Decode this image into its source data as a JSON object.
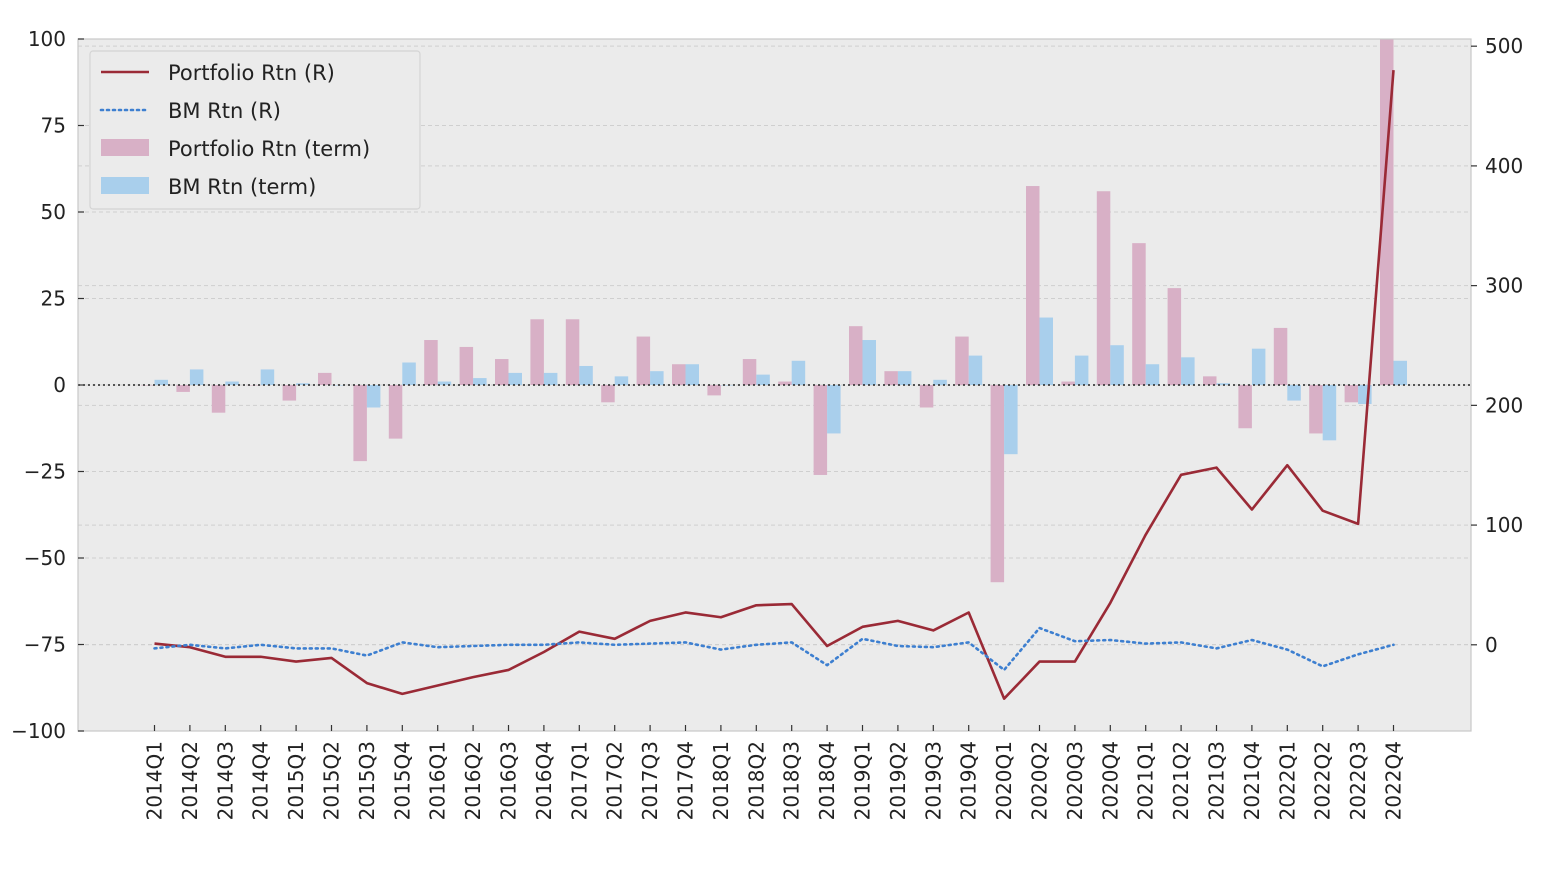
{
  "chart_data": {
    "type": "bar+line",
    "title": "",
    "xlabel": "",
    "ylabel_left": "",
    "ylabel_right": "",
    "grid": true,
    "legend_position": "upper-left",
    "categories": [
      "2014Q1",
      "2014Q2",
      "2014Q3",
      "2014Q4",
      "2015Q1",
      "2015Q2",
      "2015Q3",
      "2015Q4",
      "2016Q1",
      "2016Q2",
      "2016Q3",
      "2016Q4",
      "2017Q1",
      "2017Q2",
      "2017Q3",
      "2017Q4",
      "2018Q1",
      "2018Q2",
      "2018Q3",
      "2018Q4",
      "2019Q1",
      "2019Q2",
      "2019Q3",
      "2019Q4",
      "2020Q1",
      "2020Q2",
      "2020Q3",
      "2020Q4",
      "2021Q1",
      "2021Q2",
      "2021Q3",
      "2021Q4",
      "2022Q1",
      "2022Q2",
      "2022Q3",
      "2022Q4"
    ],
    "left_axis": {
      "ylim": [
        -100,
        100
      ],
      "ticks": [
        -100,
        -75,
        -50,
        -25,
        0,
        25,
        50,
        75,
        100
      ]
    },
    "right_axis": {
      "ylim": [
        -72,
        506
      ],
      "ticks": [
        0,
        100,
        200,
        300,
        400,
        500
      ]
    },
    "zero_line": 0,
    "series": [
      {
        "name": "Portfolio Rtn (term)",
        "kind": "bar",
        "axis": "left",
        "color": "#d8b0c6",
        "values": [
          0,
          -2,
          -8,
          0,
          -4.5,
          3.5,
          -22,
          -15.5,
          13,
          11,
          7.5,
          19,
          19,
          -5,
          14,
          6,
          -3,
          7.5,
          1,
          -26,
          17,
          4,
          -6.5,
          14,
          -57,
          57.5,
          1,
          56,
          41,
          28,
          2.5,
          -12.5,
          16.5,
          -14,
          -5,
          100
        ]
      },
      {
        "name": "BM Rtn (term)",
        "kind": "bar",
        "axis": "left",
        "color": "#a9cfec",
        "values": [
          1.5,
          4.5,
          1,
          4.5,
          0.5,
          0,
          -6.5,
          6.5,
          1,
          2,
          3.5,
          3.5,
          5.5,
          2.5,
          4,
          6,
          0,
          3,
          7,
          -14,
          13,
          4,
          1.5,
          8.5,
          -20,
          19.5,
          8.5,
          11.5,
          6,
          8,
          0.5,
          10.5,
          -4.5,
          -16,
          -5.5,
          7
        ]
      },
      {
        "name": "Portfolio Rtn (R)",
        "kind": "line",
        "axis": "right",
        "color": "#9a2a36",
        "style": "solid",
        "values": [
          1,
          -2,
          -10,
          -10,
          -14,
          -11,
          -32,
          -41,
          -34,
          -27,
          -21,
          -6,
          11,
          5,
          20,
          27,
          23,
          33,
          34,
          -1,
          15,
          20,
          12,
          27,
          -45,
          -14,
          -14,
          35,
          92,
          142,
          148,
          113,
          150,
          112,
          101,
          480
        ]
      },
      {
        "name": "BM Rtn (R)",
        "kind": "line",
        "axis": "right",
        "color": "#3d7fd0",
        "style": "dotted",
        "values": [
          -3,
          0,
          -3,
          0,
          -3,
          -3,
          -9,
          2,
          -2,
          -1,
          0,
          0,
          2,
          0,
          1,
          2,
          -4,
          0,
          2,
          -17,
          5,
          -1,
          -2,
          2,
          -21,
          14,
          3,
          4,
          1,
          2,
          -3,
          4,
          -4,
          -18,
          -8,
          0
        ]
      }
    ]
  }
}
